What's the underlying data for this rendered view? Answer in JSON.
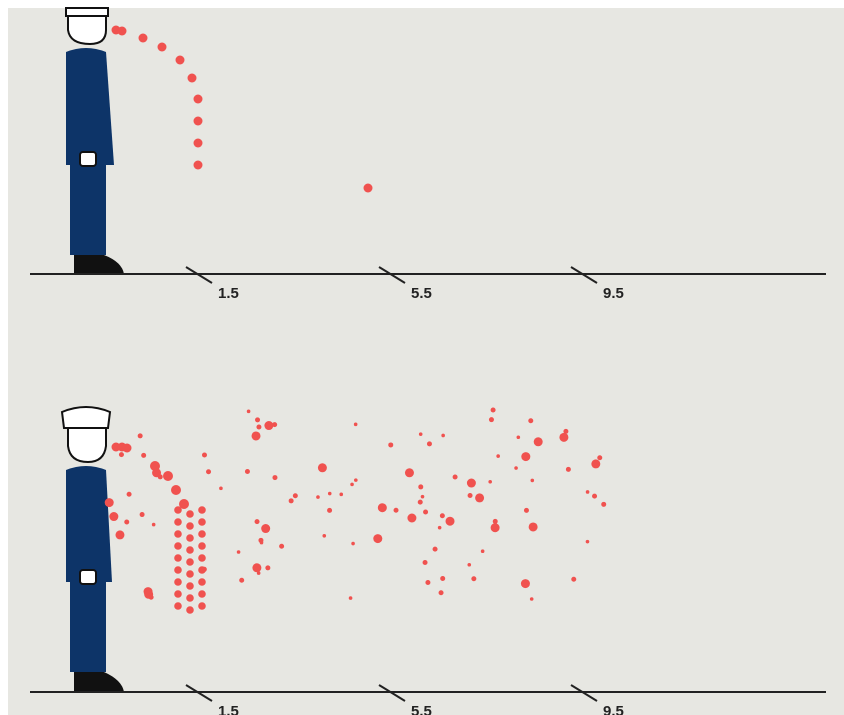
{
  "panels": [
    {
      "ticks": [
        "1.5",
        "5.5",
        "9.5"
      ]
    },
    {
      "ticks": [
        "1.5",
        "5.5",
        "9.5"
      ]
    }
  ]
}
